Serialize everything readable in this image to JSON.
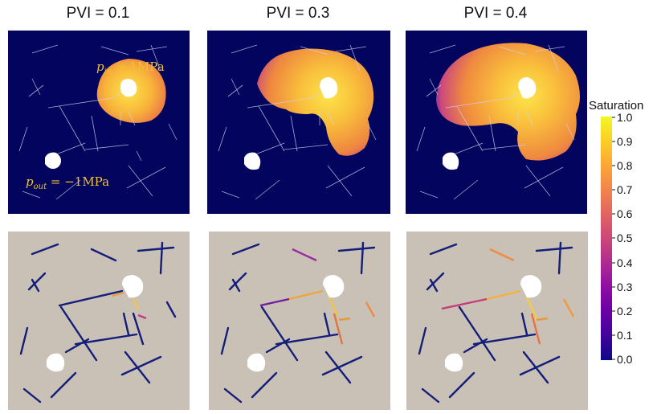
{
  "titles": [
    "PVI = 0.1",
    "PVI = 0.3",
    "PVI = 0.4"
  ],
  "annotations": {
    "p_in": {
      "symbol": "p",
      "sub": "in",
      "value": "= 1MPa"
    },
    "p_out": {
      "symbol": "p",
      "sub": "out",
      "value": "= −1MPa"
    }
  },
  "colorbar": {
    "title": "Saturation",
    "ticks": [
      "1.0",
      "0.9",
      "0.8",
      "0.7",
      "0.6",
      "0.5",
      "0.4",
      "0.3",
      "0.2",
      "0.1",
      "0.0"
    ],
    "range": [
      0,
      1
    ],
    "colormap": "plasma"
  },
  "colors": {
    "matrix_background": "#03045e",
    "fracture_panel_background": "#c9c0b6",
    "fracture_unsaturated": "#131d7a",
    "hole": "#ffffff",
    "fracture_line_top": "#cfd2f0"
  }
}
